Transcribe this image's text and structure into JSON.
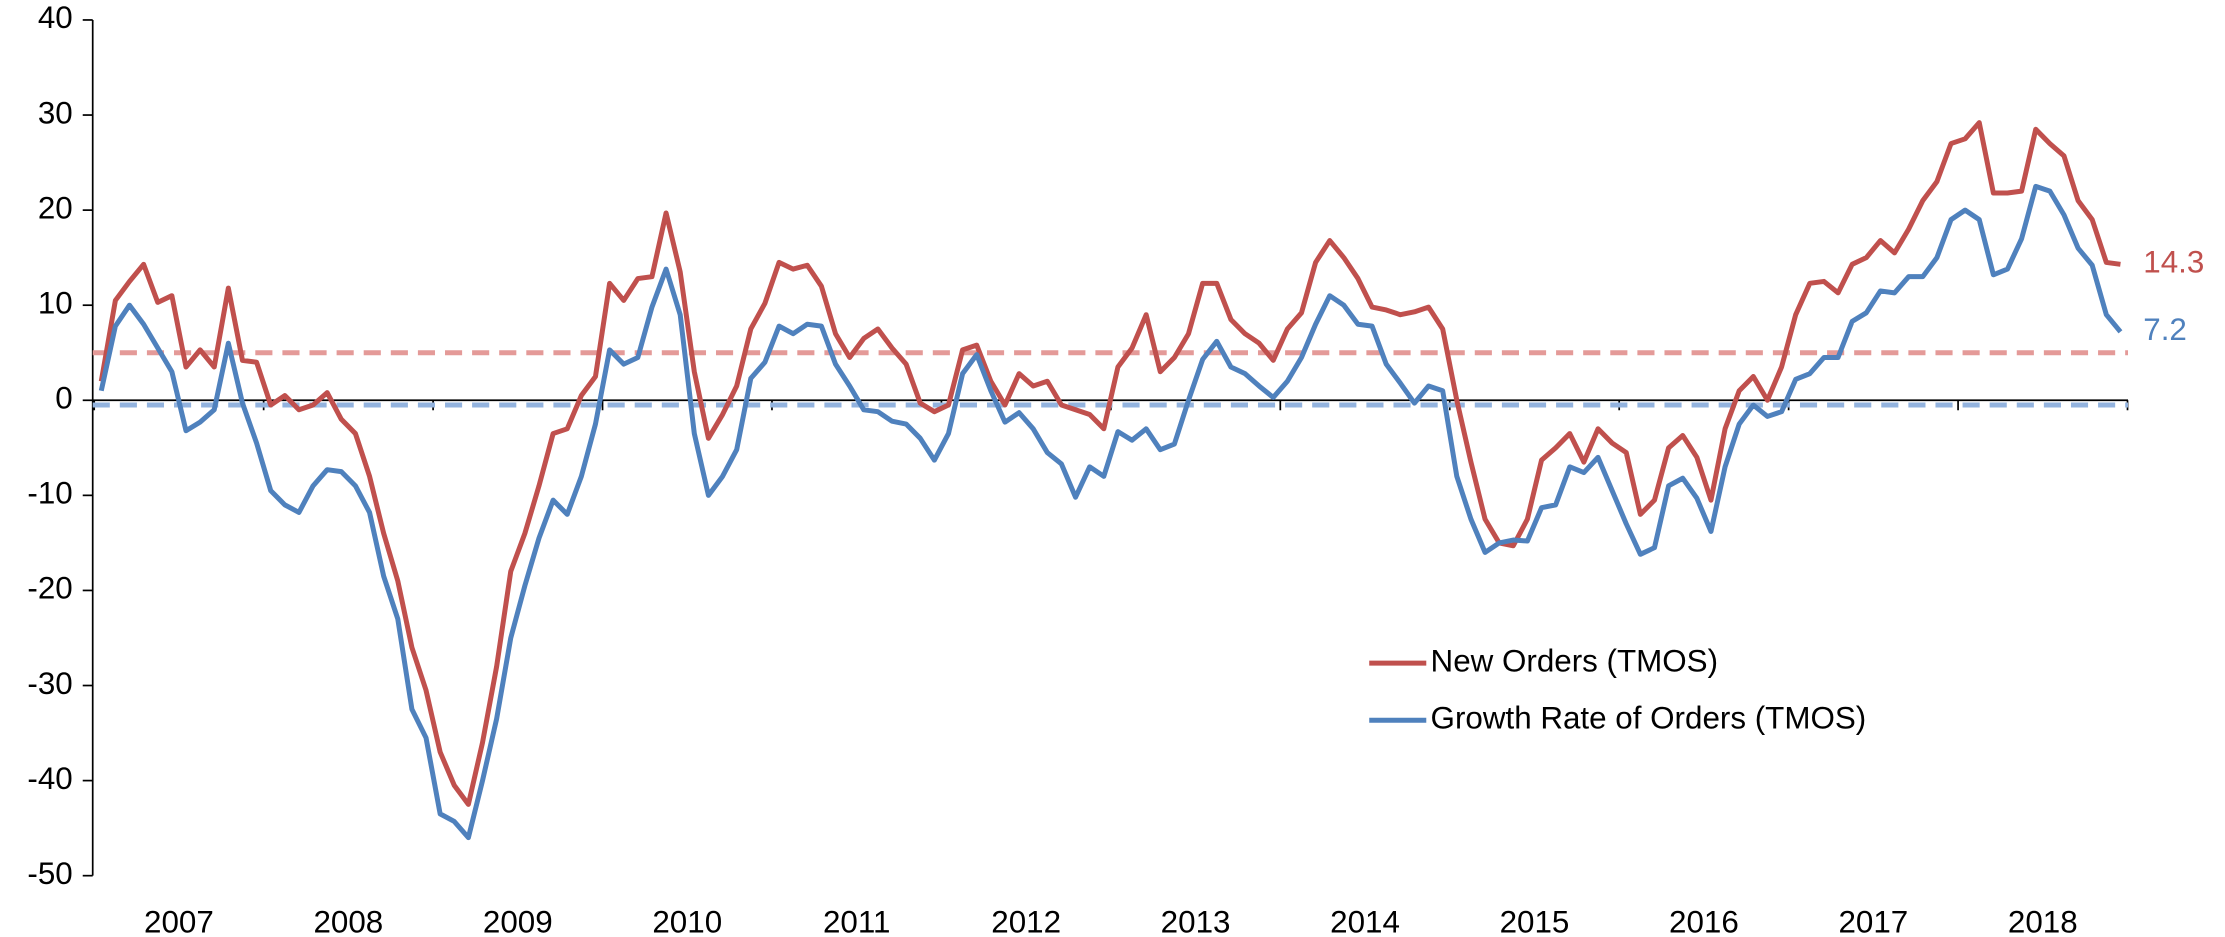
{
  "chart_data": {
    "type": "line",
    "categories": [
      null,
      null,
      null,
      null,
      null,
      null,
      "2007",
      null,
      null,
      null,
      null,
      null,
      null,
      null,
      null,
      null,
      null,
      null,
      "2008",
      null,
      null,
      null,
      null,
      null,
      null,
      null,
      null,
      null,
      null,
      null,
      "2009",
      null,
      null,
      null,
      null,
      null,
      null,
      null,
      null,
      null,
      null,
      null,
      "2010",
      null,
      null,
      null,
      null,
      null,
      null,
      null,
      null,
      null,
      null,
      null,
      "2011",
      null,
      null,
      null,
      null,
      null,
      null,
      null,
      null,
      null,
      null,
      null,
      "2012",
      null,
      null,
      null,
      null,
      null,
      null,
      null,
      null,
      null,
      null,
      null,
      "2013",
      null,
      null,
      null,
      null,
      null,
      null,
      null,
      null,
      null,
      null,
      null,
      "2014",
      null,
      null,
      null,
      null,
      null,
      null,
      null,
      null,
      null,
      null,
      null,
      "2015",
      null,
      null,
      null,
      null,
      null,
      null,
      null,
      null,
      null,
      null,
      null,
      "2016",
      null,
      null,
      null,
      null,
      null,
      null,
      null,
      null,
      null,
      null,
      null,
      "2017",
      null,
      null,
      null,
      null,
      null,
      null,
      null,
      null,
      null,
      null,
      null,
      "2018",
      null,
      null,
      null,
      null,
      null
    ],
    "series": [
      {
        "name": "New Orders (TMOS)",
        "color": "#c0504d",
        "values": [
          2,
          10.5,
          12.5,
          14.3,
          10.3,
          11,
          3.5,
          5.3,
          3.5,
          11.8,
          4.2,
          4,
          -0.5,
          0.5,
          -1,
          -0.5,
          0.8,
          -2,
          -3.5,
          -8,
          -14,
          -19,
          -26,
          -30.5,
          -37,
          -40.5,
          -42.5,
          -36,
          -28,
          -18,
          -14,
          -9,
          -3.5,
          -3,
          0.5,
          2.5,
          12.3,
          10.5,
          12.8,
          13,
          19.7,
          13.5,
          3,
          -4,
          -1.5,
          1.5,
          7.5,
          10.2,
          14.5,
          13.8,
          14.2,
          12,
          7,
          4.5,
          6.5,
          7.5,
          5.5,
          3.8,
          -0.3,
          -1.2,
          -0.5,
          5.3,
          5.8,
          2,
          -0.5,
          2.8,
          1.5,
          2,
          -0.5,
          -1,
          -1.5,
          -3,
          3.5,
          5.5,
          9,
          3,
          4.5,
          7,
          12.3,
          12.3,
          8.5,
          7,
          6,
          4.2,
          7.5,
          9.2,
          14.5,
          16.8,
          15,
          12.8,
          9.8,
          9.5,
          9,
          9.3,
          9.8,
          7.5,
          0,
          -6.5,
          -12.5,
          -15,
          -15.3,
          -12.5,
          -6.3,
          -5,
          -3.5,
          -6.5,
          -3,
          -4.5,
          -5.5,
          -12,
          -10.5,
          -5,
          -3.7,
          -6,
          -10.5,
          -3,
          1,
          2.5,
          0,
          3.5,
          9,
          12.3,
          12.5,
          11.3,
          14.3,
          15,
          16.8,
          15.5,
          18,
          21,
          23,
          27,
          27.5,
          29.2,
          21.8,
          21.8,
          22,
          28.5,
          27,
          25.7,
          21,
          19,
          14.5,
          14.3
        ]
      },
      {
        "name": "Growth Rate of Orders (TMOS)",
        "color": "#4f81bd",
        "values": [
          1,
          7.8,
          10,
          8,
          5.5,
          3,
          -3.2,
          -2.3,
          -1,
          6,
          -0.3,
          -4.5,
          -9.5,
          -11,
          -11.8,
          -9,
          -7.3,
          -7.5,
          -9,
          -11.8,
          -18.5,
          -23,
          -32.5,
          -35.5,
          -43.5,
          -44.3,
          -46,
          -40,
          -33.5,
          -25,
          -19.5,
          -14.5,
          -10.5,
          -12,
          -8,
          -2.5,
          5.3,
          3.8,
          4.5,
          9.8,
          13.8,
          9,
          -3.5,
          -10,
          -8,
          -5.2,
          2.3,
          4,
          7.8,
          7,
          8,
          7.8,
          3.8,
          1.5,
          -1,
          -1.2,
          -2.2,
          -2.5,
          -4,
          -6.3,
          -3.5,
          2.8,
          4.8,
          1,
          -2.3,
          -1.3,
          -3,
          -5.5,
          -6.7,
          -10.2,
          -7,
          -8,
          -3.3,
          -4.2,
          -3,
          -5.2,
          -4.6,
          0,
          4.3,
          6.2,
          3.5,
          2.8,
          1.5,
          0.3,
          2,
          4.5,
          8,
          11,
          10,
          8,
          7.8,
          3.8,
          1.8,
          -0.3,
          1.5,
          1,
          -8,
          -12.5,
          -16,
          -15,
          -14.7,
          -14.8,
          -11.3,
          -11,
          -7,
          -7.6,
          -6,
          -9.5,
          -13,
          -16.2,
          -15.5,
          -9,
          -8.2,
          -10.3,
          -13.8,
          -7,
          -2.5,
          -0.5,
          -1.7,
          -1.2,
          2.2,
          2.8,
          4.5,
          4.5,
          8.3,
          9.2,
          11.5,
          11.3,
          13,
          13,
          15,
          19,
          20,
          19,
          13.2,
          13.8,
          17,
          22.5,
          22,
          19.5,
          16,
          14.2,
          9,
          7.2
        ]
      }
    ],
    "reference_lines": [
      {
        "value": 5,
        "color": "#e49a98"
      },
      {
        "value": -0.5,
        "color": "#93b3de"
      }
    ],
    "ylim": [
      -50,
      40
    ],
    "yticks": [
      -50,
      -40,
      -30,
      -20,
      -10,
      0,
      10,
      20,
      30,
      40
    ],
    "grid": false,
    "legend": "lower right"
  }
}
